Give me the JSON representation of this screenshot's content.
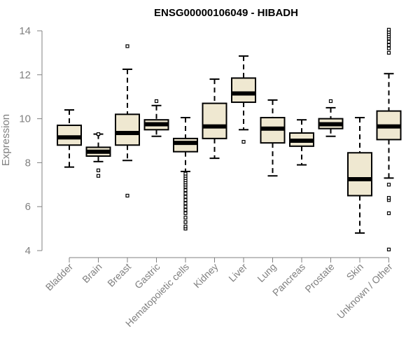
{
  "chart_data": {
    "type": "boxplot",
    "title": "ENSG00000106049 - HIBADH",
    "xlabel": "",
    "ylabel": "Expression",
    "ylim": [
      4,
      14
    ],
    "yticks": [
      "4",
      "6",
      "8",
      "10",
      "12",
      "14"
    ],
    "grid": false,
    "box_fill": "#efe8d1",
    "categories": [
      "Bladder",
      "Brain",
      "Breast",
      "Gastric",
      "Hematopoietic cells",
      "Kidney",
      "Liver",
      "Lung",
      "Pancreas",
      "Prostate",
      "Skin",
      "Unknown / Other"
    ],
    "boxes": [
      {
        "lw": 7.8,
        "q1": 8.8,
        "med": 9.15,
        "q3": 9.7,
        "uw": 10.4,
        "outliers": []
      },
      {
        "lw": 8.05,
        "q1": 8.3,
        "med": 8.5,
        "q3": 8.7,
        "uw": 9.3,
        "outliers": [
          7.4,
          7.65,
          9.3
        ]
      },
      {
        "lw": 8.1,
        "q1": 8.8,
        "med": 9.35,
        "q3": 10.2,
        "uw": 12.25,
        "outliers": [
          6.5,
          13.3
        ]
      },
      {
        "lw": 9.2,
        "q1": 9.5,
        "med": 9.75,
        "q3": 9.95,
        "uw": 10.6,
        "outliers": [
          10.8
        ]
      },
      {
        "lw": 7.6,
        "q1": 8.5,
        "med": 8.9,
        "q3": 9.1,
        "uw": 10.05,
        "outliers": [
          5.0,
          5.1,
          5.3,
          5.5,
          5.7,
          5.85,
          6.0,
          6.15,
          6.3,
          6.45,
          6.6,
          6.75,
          6.9,
          7.0,
          7.1,
          7.2,
          7.3,
          7.4,
          7.5
        ]
      },
      {
        "lw": 8.2,
        "q1": 9.1,
        "med": 9.65,
        "q3": 10.7,
        "uw": 11.8,
        "outliers": []
      },
      {
        "lw": 9.5,
        "q1": 10.75,
        "med": 11.15,
        "q3": 11.85,
        "uw": 12.85,
        "outliers": [
          8.95
        ]
      },
      {
        "lw": 7.4,
        "q1": 8.9,
        "med": 9.55,
        "q3": 10.05,
        "uw": 10.85,
        "outliers": []
      },
      {
        "lw": 7.9,
        "q1": 8.75,
        "med": 9.0,
        "q3": 9.35,
        "uw": 9.95,
        "outliers": []
      },
      {
        "lw": 9.2,
        "q1": 9.55,
        "med": 9.75,
        "q3": 10.0,
        "uw": 10.5,
        "outliers": [
          10.8
        ]
      },
      {
        "lw": 4.8,
        "q1": 6.5,
        "med": 7.25,
        "q3": 8.45,
        "uw": 10.05,
        "outliers": []
      },
      {
        "lw": 7.3,
        "q1": 9.05,
        "med": 9.65,
        "q3": 10.35,
        "uw": 12.05,
        "outliers": [
          4.05,
          5.7,
          6.3,
          6.4,
          7.0,
          13.0,
          13.2,
          13.35,
          13.5,
          13.65,
          13.75,
          13.85,
          13.95,
          14.05
        ]
      }
    ]
  }
}
